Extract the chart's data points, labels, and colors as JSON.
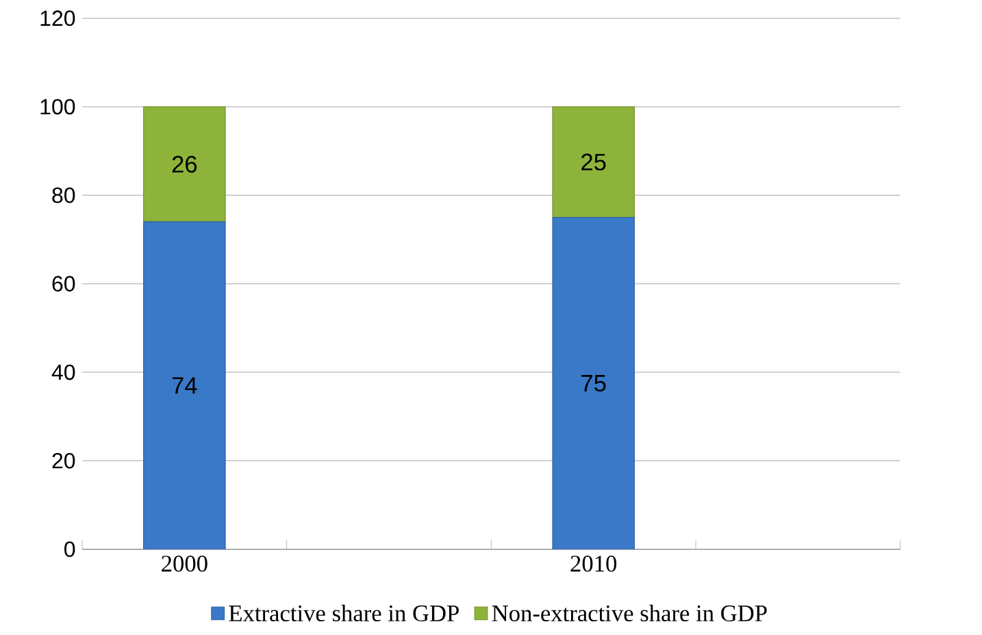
{
  "chart_data": {
    "type": "bar",
    "stacked": true,
    "categories": [
      "2000",
      null,
      "2010",
      null
    ],
    "series": [
      {
        "name": "Extractive share in GDP",
        "color": "#3a78c8",
        "values": [
          74,
          null,
          75,
          null
        ]
      },
      {
        "name": "Non-extractive share in GDP",
        "color": "#8db33a",
        "values": [
          26,
          null,
          25,
          null
        ]
      }
    ],
    "ylim": [
      0,
      120
    ],
    "yticks": [
      0,
      20,
      40,
      60,
      80,
      100,
      120
    ],
    "grid": "y",
    "legend": "bottom",
    "data_labels": true
  }
}
